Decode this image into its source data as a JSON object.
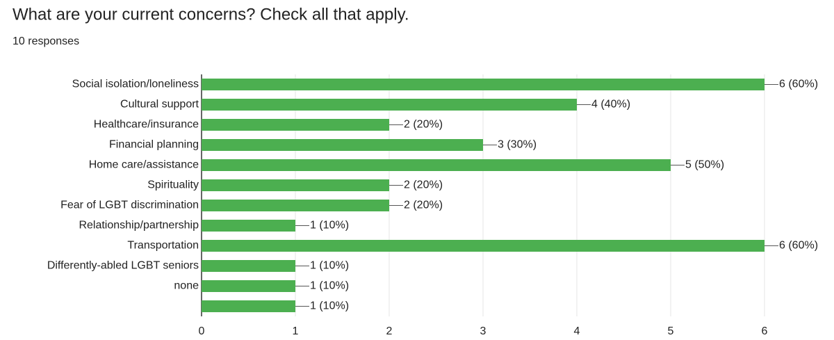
{
  "chart_data": {
    "type": "bar",
    "orientation": "horizontal",
    "title": "What are your current concerns? Check all that apply.",
    "subtitle": "10 responses",
    "categories": [
      "Social isolation/loneliness",
      "Cultural support",
      "Healthcare/insurance",
      "Financial planning",
      "Home care/assistance",
      "Spirituality",
      "Fear of LGBT discrimination",
      "Relationship/partnership",
      "Transportation",
      "Differently-abled LGBT seniors",
      "none",
      null
    ],
    "values": [
      6,
      4,
      2,
      3,
      5,
      2,
      2,
      1,
      6,
      1,
      1,
      1
    ],
    "value_labels": [
      "6 (60%)",
      "4 (40%)",
      "2 (20%)",
      "3 (30%)",
      "5 (50%)",
      "2 (20%)",
      "2 (20%)",
      "1 (10%)",
      "6 (60%)",
      "1 (10%)",
      "1 (10%)",
      "1 (10%)"
    ],
    "color": "#4caf50",
    "xlim": [
      0,
      6
    ],
    "xticks": [
      0,
      1,
      2,
      3,
      4,
      5,
      6
    ],
    "grid": true
  }
}
